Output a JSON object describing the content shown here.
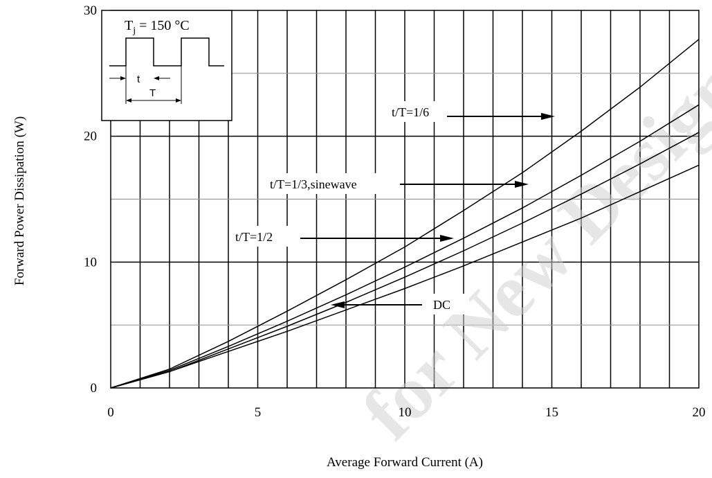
{
  "chart_data": {
    "type": "line",
    "title": "",
    "xlabel": "Average Forward Current (A)",
    "ylabel": "Forward Power Dissipation (W)",
    "xlim": [
      0,
      20
    ],
    "ylim": [
      0,
      30
    ],
    "x_ticks": [
      "0",
      "5",
      "10",
      "15",
      "20"
    ],
    "y_ticks": [
      "0",
      "10",
      "20",
      "30"
    ],
    "grid": true,
    "series": [
      {
        "name": "t/T=1/6",
        "x": [
          0,
          2,
          4,
          6,
          8,
          10,
          12,
          14,
          16,
          18,
          20
        ],
        "values": [
          0,
          1.5,
          3.7,
          6.1,
          8.6,
          11.2,
          14.1,
          17.1,
          20.4,
          23.9,
          27.7
        ]
      },
      {
        "name": "t/T=1/3,sinewave",
        "x": [
          0,
          2,
          4,
          6,
          8,
          10,
          12,
          14,
          16,
          18,
          20
        ],
        "values": [
          0,
          1.4,
          3.3,
          5.3,
          7.4,
          9.6,
          11.9,
          14.3,
          16.9,
          19.6,
          22.5
        ]
      },
      {
        "name": "t/T=1/2",
        "x": [
          0,
          2,
          4,
          6,
          8,
          10,
          12,
          14,
          16,
          18,
          20
        ],
        "values": [
          0,
          1.3,
          3.1,
          4.9,
          6.8,
          8.8,
          10.9,
          13.1,
          15.4,
          17.8,
          20.3
        ]
      },
      {
        "name": "DC",
        "x": [
          0,
          2,
          4,
          6,
          8,
          10,
          12,
          14,
          16,
          18,
          20
        ],
        "values": [
          0,
          1.3,
          2.9,
          4.5,
          6.2,
          7.9,
          9.7,
          11.6,
          13.5,
          15.6,
          17.7
        ]
      }
    ],
    "annotations": [
      {
        "text": "t/T=1/6",
        "series": "t/T=1/6"
      },
      {
        "text": "t/T=1/3,sinewave",
        "series": "t/T=1/3,sinewave"
      },
      {
        "text": "t/T=1/2",
        "series": "t/T=1/2"
      },
      {
        "text": "DC",
        "series": "DC"
      }
    ],
    "inset": {
      "condition_main": "T",
      "condition_sub": "j",
      "condition_rest": " = 150 °C",
      "pulse_label": "t",
      "period_label": "T"
    }
  },
  "watermark": "for New Designs"
}
